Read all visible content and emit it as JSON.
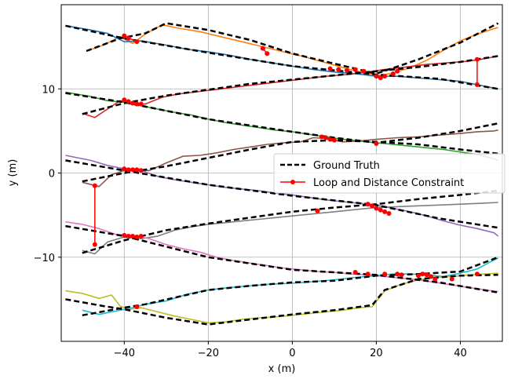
{
  "chart_data": {
    "type": "line",
    "title": "",
    "xlabel": "x (m)",
    "ylabel": "y (m)",
    "xlim": [
      -55,
      50
    ],
    "ylim": [
      -20,
      20
    ],
    "xticks": [
      -40,
      -20,
      0,
      20,
      40
    ],
    "yticks": [
      -10,
      0,
      10
    ],
    "xtick_labels": [
      "−40",
      "−20",
      "0",
      "20",
      "40"
    ],
    "ytick_labels": [
      "−10",
      "0",
      "10"
    ],
    "grid": true,
    "legend": {
      "placement": "center-right",
      "entries": [
        {
          "label": "Ground Truth",
          "style": "dashed",
          "color": "#000000"
        },
        {
          "label": "Loop and Distance Constraint",
          "style": "line-marker",
          "color": "#ff0000"
        }
      ]
    },
    "series": [
      {
        "color": "#ff7f0e",
        "x": [
          -49,
          -45,
          -41,
          -38,
          -35,
          -31,
          -27,
          -22,
          -17,
          -12,
          -7,
          -2,
          3,
          8,
          13,
          18,
          21,
          24,
          28,
          32,
          36,
          40,
          44,
          47,
          49
        ],
        "y": [
          14.5,
          15.2,
          16.2,
          15.4,
          16.5,
          17.6,
          17.2,
          16.8,
          16.2,
          15.6,
          15.0,
          14.4,
          13.8,
          13.1,
          12.4,
          11.8,
          11.6,
          11.9,
          12.5,
          13.4,
          14.6,
          15.7,
          16.5,
          17.0,
          17.3
        ]
      },
      {
        "color": "#000000",
        "dashed": true,
        "x": [
          -49,
          -41,
          -35,
          -30,
          -20,
          -10,
          0,
          10,
          20,
          30,
          40,
          49
        ],
        "y": [
          14.5,
          16.0,
          16.6,
          17.8,
          17.0,
          15.8,
          14.2,
          13.0,
          11.8,
          13.5,
          15.5,
          17.8
        ]
      },
      {
        "color": "#1f77b4",
        "x": [
          -54,
          -48,
          -44,
          -40,
          -36,
          -30,
          -25,
          -20,
          -15,
          -10,
          -5,
          0,
          5,
          10,
          15,
          20,
          25,
          30,
          35,
          40,
          45,
          49
        ],
        "y": [
          17.5,
          17.0,
          16.6,
          15.6,
          15.7,
          15.2,
          14.7,
          14.4,
          14.0,
          13.5,
          13.1,
          12.7,
          12.3,
          12.0,
          11.8,
          11.5,
          11.5,
          11.3,
          11.1,
          10.9,
          10.4,
          10.0
        ]
      },
      {
        "color": "#000000",
        "dashed": true,
        "x": [
          -54,
          -40,
          -20,
          0,
          20,
          35,
          49
        ],
        "y": [
          17.5,
          16.0,
          14.3,
          12.7,
          11.7,
          11.2,
          10.0
        ]
      },
      {
        "color": "#d62728",
        "x": [
          -50,
          -47,
          -44,
          -41,
          -38,
          -35,
          -31,
          -27,
          -22,
          -17,
          -12,
          -7,
          -2,
          3,
          8,
          13,
          18,
          22,
          27,
          32,
          37,
          42,
          46,
          49
        ],
        "y": [
          7.1,
          6.6,
          7.6,
          8.6,
          8.2,
          8.2,
          9.0,
          9.4,
          9.7,
          10.0,
          10.3,
          10.6,
          10.9,
          11.2,
          11.5,
          11.7,
          12.0,
          12.3,
          12.6,
          12.9,
          13.1,
          13.3,
          13.6,
          13.9
        ]
      },
      {
        "color": "#000000",
        "dashed": true,
        "x": [
          -50,
          -40,
          -30,
          -20,
          -10,
          0,
          10,
          20,
          30,
          40,
          49
        ],
        "y": [
          7.0,
          8.3,
          9.2,
          9.9,
          10.6,
          11.1,
          11.6,
          12.1,
          12.6,
          13.2,
          13.9
        ]
      },
      {
        "color": "#2ca02c",
        "x": [
          -54,
          -48,
          -44,
          -40,
          -36,
          -32,
          -28,
          -24,
          -20,
          -16,
          -12,
          -8,
          -4,
          0,
          4,
          8,
          12,
          16,
          20,
          24,
          28,
          32,
          36,
          40,
          44,
          48,
          49
        ],
        "y": [
          9.6,
          9.1,
          8.6,
          8.4,
          8.0,
          7.6,
          7.2,
          6.9,
          6.4,
          6.0,
          5.7,
          5.4,
          5.1,
          4.9,
          4.6,
          4.3,
          4.0,
          3.8,
          3.6,
          3.4,
          3.2,
          3.0,
          2.8,
          2.5,
          2.2,
          1.7,
          1.5
        ]
      },
      {
        "color": "#000000",
        "dashed": true,
        "x": [
          -54,
          -40,
          -20,
          0,
          10,
          20,
          30,
          40,
          49
        ],
        "y": [
          9.5,
          8.4,
          6.4,
          4.9,
          4.2,
          3.6,
          4.2,
          5.0,
          5.9
        ]
      },
      {
        "color": "#8c564b",
        "x": [
          -50,
          -46,
          -43,
          -40,
          -37,
          -34,
          -30,
          -26,
          -22,
          -18,
          -14,
          -10,
          -6,
          -2,
          2,
          5,
          8,
          12,
          16,
          20,
          25,
          30,
          35,
          40,
          44,
          48,
          49
        ],
        "y": [
          -1.1,
          -1.6,
          -0.2,
          0.3,
          0.3,
          0.3,
          1.2,
          2.0,
          2.1,
          2.4,
          2.8,
          3.1,
          3.4,
          3.6,
          3.7,
          4.2,
          4.1,
          3.7,
          3.8,
          4.0,
          4.2,
          4.3,
          4.5,
          4.7,
          4.9,
          5.0,
          5.1
        ]
      },
      {
        "color": "#000000",
        "dashed": true,
        "x": [
          -50,
          -40,
          -30,
          -20,
          -10,
          0,
          10,
          20,
          30,
          40,
          49
        ],
        "y": [
          -1.0,
          0.0,
          0.8,
          1.8,
          2.8,
          3.7,
          3.9,
          3.7,
          3.4,
          2.8,
          2.3
        ]
      },
      {
        "color": "#9467bd",
        "x": [
          -54,
          -48,
          -44,
          -40,
          -36,
          -32,
          -28,
          -24,
          -20,
          -16,
          -12,
          -8,
          -4,
          0,
          4,
          8,
          12,
          16,
          20,
          24,
          28,
          32,
          36,
          40,
          44,
          48,
          49
        ],
        "y": [
          2.1,
          1.5,
          0.9,
          0.5,
          0.3,
          -0.4,
          -0.8,
          -1.1,
          -1.4,
          -1.7,
          -1.9,
          -2.1,
          -2.4,
          -2.6,
          -2.9,
          -3.2,
          -3.4,
          -3.6,
          -3.8,
          -4.2,
          -4.6,
          -5.1,
          -5.7,
          -6.2,
          -6.6,
          -7.1,
          -7.5
        ]
      },
      {
        "color": "#000000",
        "dashed": true,
        "x": [
          -54,
          -40,
          -20,
          0,
          20,
          35,
          49
        ],
        "y": [
          1.5,
          0.3,
          -1.4,
          -2.7,
          -3.8,
          -5.4,
          -6.5
        ]
      },
      {
        "color": "#7f7f7f",
        "x": [
          -50,
          -47,
          -44,
          -40,
          -36,
          -32,
          -28,
          -24,
          -20,
          -16,
          -12,
          -8,
          -4,
          0,
          4,
          8,
          12,
          16,
          20,
          25,
          30,
          35,
          40,
          45,
          49
        ],
        "y": [
          -9.2,
          -9.6,
          -8.2,
          -7.6,
          -7.8,
          -7.5,
          -6.8,
          -6.4,
          -6.1,
          -5.9,
          -5.7,
          -5.5,
          -5.3,
          -5.1,
          -4.9,
          -4.7,
          -4.5,
          -4.3,
          -4.1,
          -4.0,
          -3.9,
          -3.8,
          -3.7,
          -3.6,
          -3.5
        ]
      },
      {
        "color": "#000000",
        "dashed": true,
        "x": [
          -50,
          -40,
          -30,
          -20,
          -10,
          0,
          10,
          20,
          30,
          40,
          49
        ],
        "y": [
          -9.5,
          -8.0,
          -6.8,
          -6.0,
          -5.3,
          -4.6,
          -4.1,
          -3.7,
          -3.1,
          -2.6,
          -2.1
        ]
      },
      {
        "color": "#e377c2",
        "x": [
          -54,
          -50,
          -46,
          -42,
          -38,
          -34,
          -30,
          -26,
          -22,
          -18,
          -14,
          -10,
          -6,
          -2,
          2,
          6,
          10,
          14,
          18,
          22,
          26,
          30,
          34,
          38,
          42,
          46,
          49
        ],
        "y": [
          -5.8,
          -6.1,
          -6.6,
          -7.3,
          -7.4,
          -7.8,
          -8.5,
          -9.0,
          -9.4,
          -10.0,
          -10.4,
          -10.7,
          -11.0,
          -11.3,
          -11.5,
          -11.7,
          -11.8,
          -12.0,
          -12.1,
          -12.3,
          -12.5,
          -12.7,
          -13.0,
          -13.3,
          -13.6,
          -13.9,
          -14.1
        ]
      },
      {
        "color": "#000000",
        "dashed": true,
        "x": [
          -54,
          -40,
          -20,
          0,
          20,
          35,
          49
        ],
        "y": [
          -6.3,
          -7.5,
          -10.0,
          -11.5,
          -12.1,
          -13.0,
          -14.2
        ]
      },
      {
        "color": "#17becf",
        "x": [
          -50,
          -46,
          -42,
          -38,
          -35,
          -30,
          -25,
          -20,
          -15,
          -10,
          -5,
          0,
          5,
          10,
          15,
          20,
          24,
          28,
          32,
          36,
          40,
          44,
          47,
          49
        ],
        "y": [
          -16.3,
          -16.8,
          -16.4,
          -16.0,
          -15.6,
          -15.2,
          -14.4,
          -13.9,
          -13.6,
          -13.4,
          -13.2,
          -13.1,
          -12.9,
          -12.7,
          -12.4,
          -12.2,
          -12.0,
          -12.0,
          -12.1,
          -12.3,
          -11.9,
          -11.4,
          -10.6,
          -10.1
        ]
      },
      {
        "color": "#000000",
        "dashed": true,
        "x": [
          -50,
          -40,
          -35,
          -20,
          -10,
          0,
          10,
          20,
          30,
          40,
          49
        ],
        "y": [
          -16.9,
          -16.0,
          -15.6,
          -13.9,
          -13.4,
          -13.0,
          -12.8,
          -12.2,
          -12.0,
          -11.7,
          -10.0
        ]
      },
      {
        "color": "#bcbd22",
        "x": [
          -54,
          -50,
          -46,
          -43,
          -41,
          -39,
          -36,
          -32,
          -28,
          -24,
          -20,
          -16,
          -12,
          -8,
          -4,
          0,
          4,
          8,
          12,
          16,
          19,
          22,
          26,
          30,
          34,
          38,
          42,
          46,
          49
        ],
        "y": [
          -14.0,
          -14.3,
          -14.9,
          -14.5,
          -15.8,
          -16.2,
          -16.0,
          -16.5,
          -17.0,
          -17.4,
          -17.8,
          -17.7,
          -17.4,
          -17.2,
          -17.1,
          -16.9,
          -16.7,
          -16.5,
          -16.3,
          -16.0,
          -15.9,
          -14.0,
          -13.2,
          -12.7,
          -12.4,
          -12.3,
          -12.1,
          -12.0,
          -11.9
        ]
      },
      {
        "color": "#000000",
        "dashed": true,
        "x": [
          -54,
          -45,
          -40,
          -30,
          -20,
          -10,
          0,
          10,
          19,
          22,
          30,
          40,
          49
        ],
        "y": [
          -15.0,
          -15.8,
          -16.2,
          -17.2,
          -18.0,
          -17.4,
          -16.8,
          -16.3,
          -15.7,
          -13.9,
          -12.6,
          -12.2,
          -12.1
        ]
      }
    ],
    "constraint_points": [
      [
        -40,
        16.3
      ],
      [
        -39,
        16.0
      ],
      [
        -37,
        15.6
      ],
      [
        -7,
        14.8
      ],
      [
        -6,
        14.2
      ],
      [
        9,
        12.4
      ],
      [
        11,
        12.3
      ],
      [
        13,
        12.2
      ],
      [
        15,
        12.3
      ],
      [
        17,
        12.1
      ],
      [
        20,
        11.5
      ],
      [
        21,
        11.3
      ],
      [
        22,
        11.5
      ],
      [
        24,
        11.8
      ],
      [
        25,
        12.1
      ],
      [
        44,
        13.5
      ],
      [
        44,
        10.5
      ],
      [
        -40,
        8.7
      ],
      [
        -39,
        8.5
      ],
      [
        -38,
        8.3
      ],
      [
        -37,
        8.2
      ],
      [
        -36,
        8.2
      ],
      [
        7,
        4.3
      ],
      [
        8,
        4.2
      ],
      [
        9,
        4.0
      ],
      [
        10,
        3.9
      ],
      [
        20,
        3.5
      ],
      [
        -40,
        0.5
      ],
      [
        -39,
        0.4
      ],
      [
        -38,
        0.4
      ],
      [
        -37,
        0.4
      ],
      [
        -36,
        0.3
      ],
      [
        6,
        -4.5
      ],
      [
        18,
        -3.7
      ],
      [
        19,
        -3.9
      ],
      [
        20,
        -4.2
      ],
      [
        21,
        -4.4
      ],
      [
        22,
        -4.6
      ],
      [
        23,
        -4.8
      ],
      [
        -47,
        -1.5
      ],
      [
        -47,
        -8.5
      ],
      [
        -40,
        -7.4
      ],
      [
        -39,
        -7.5
      ],
      [
        -38,
        -7.5
      ],
      [
        -37,
        -7.6
      ],
      [
        -36,
        -7.5
      ],
      [
        -37,
        -15.9
      ],
      [
        15,
        -11.8
      ],
      [
        18,
        -12.0
      ],
      [
        22,
        -12.0
      ],
      [
        25,
        -12.0
      ],
      [
        26,
        -12.1
      ],
      [
        30,
        -12.2
      ],
      [
        31,
        -12.0
      ],
      [
        32,
        -12.1
      ],
      [
        33,
        -12.3
      ],
      [
        34,
        -12.6
      ],
      [
        38,
        -12.6
      ],
      [
        44,
        -12.0
      ]
    ],
    "constraint_segments": [
      [
        [
          -40,
          16.3
        ],
        [
          -37,
          15.6
        ]
      ],
      [
        [
          -7,
          14.8
        ],
        [
          -6,
          14.2
        ]
      ],
      [
        [
          44,
          13.5
        ],
        [
          44,
          10.5
        ]
      ],
      [
        [
          -47,
          -1.5
        ],
        [
          -47,
          -8.5
        ]
      ]
    ]
  }
}
